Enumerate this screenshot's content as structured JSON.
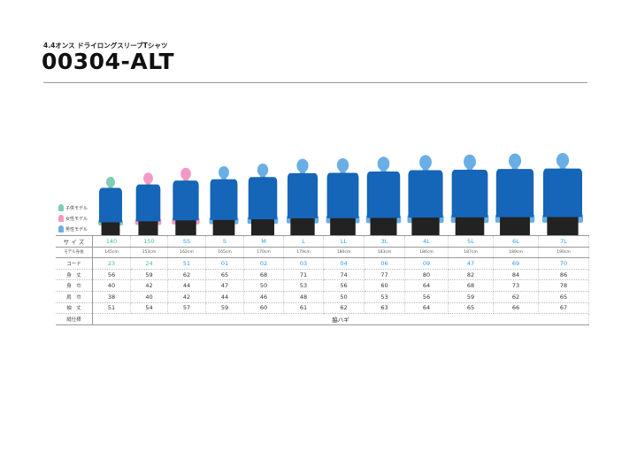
{
  "header": {
    "subtitle": "4.4オンス ドライロングスリーブTシャツ",
    "title": "00304-ALT"
  },
  "legend": [
    {
      "label": "子供モデル",
      "color": "#7fcdb5"
    },
    {
      "label": "女性モデル",
      "color": "#f29ac4"
    },
    {
      "label": "男性モデル",
      "color": "#6aaee6"
    }
  ],
  "colors": {
    "shirt": "#1565b8",
    "shorts": "#222222",
    "kids_text": "#3cbfa6",
    "size_text": "#2a9ee8"
  },
  "row_labels": {
    "size": "サ イ ズ",
    "height": "モデル身長",
    "code": "コード",
    "length": "身　丈",
    "width": "身　巾",
    "shoulder": "肩　巾",
    "sleeve": "袖　丈",
    "sewing": "縫仕様"
  },
  "sewing_value": "脇ハギ",
  "columns": [
    {
      "size": "140",
      "height": "145cm",
      "code": "23",
      "length": "56",
      "width": "40",
      "shoulder": "38",
      "sleeve": "51",
      "model": "kids"
    },
    {
      "size": "150",
      "height": "153cm",
      "code": "24",
      "length": "59",
      "width": "42",
      "shoulder": "40",
      "sleeve": "54",
      "model": "women"
    },
    {
      "size": "SS",
      "height": "162cm",
      "code": "51",
      "length": "62",
      "width": "44",
      "shoulder": "42",
      "sleeve": "57",
      "model": "women"
    },
    {
      "size": "S",
      "height": "165cm",
      "code": "01",
      "length": "65",
      "width": "47",
      "shoulder": "44",
      "sleeve": "59",
      "model": "men"
    },
    {
      "size": "M",
      "height": "170cm",
      "code": "02",
      "length": "68",
      "width": "50",
      "shoulder": "46",
      "sleeve": "60",
      "model": "men"
    },
    {
      "size": "L",
      "height": "179cm",
      "code": "03",
      "length": "71",
      "width": "53",
      "shoulder": "48",
      "sleeve": "61",
      "model": "men"
    },
    {
      "size": "LL",
      "height": "180cm",
      "code": "04",
      "length": "74",
      "width": "56",
      "shoulder": "50",
      "sleeve": "62",
      "model": "men"
    },
    {
      "size": "3L",
      "height": "183cm",
      "code": "06",
      "length": "77",
      "width": "60",
      "shoulder": "53",
      "sleeve": "63",
      "model": "men"
    },
    {
      "size": "4L",
      "height": "186cm",
      "code": "09",
      "length": "80",
      "width": "64",
      "shoulder": "56",
      "sleeve": "64",
      "model": "men"
    },
    {
      "size": "5L",
      "height": "187cm",
      "code": "47",
      "length": "82",
      "width": "68",
      "shoulder": "59",
      "sleeve": "65",
      "model": "men"
    },
    {
      "size": "6L",
      "height": "189cm",
      "code": "69",
      "length": "84",
      "width": "73",
      "shoulder": "62",
      "sleeve": "66",
      "model": "men"
    },
    {
      "size": "7L",
      "height": "190cm",
      "code": "70",
      "length": "86",
      "width": "78",
      "shoulder": "65",
      "sleeve": "67",
      "model": "men"
    }
  ]
}
